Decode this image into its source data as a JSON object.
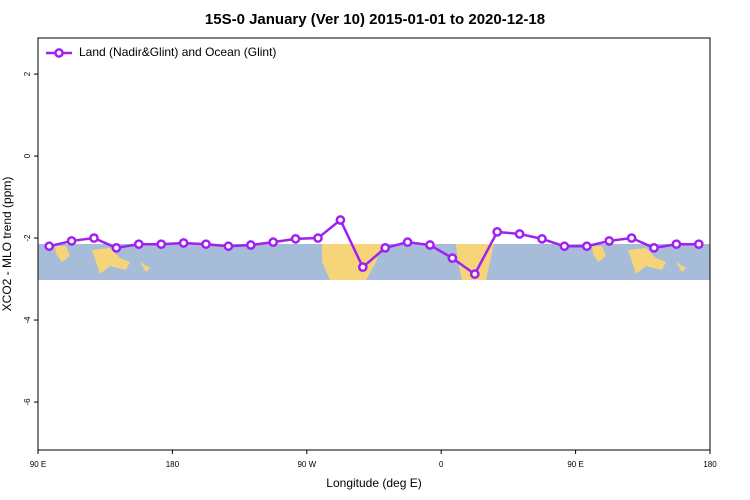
{
  "chart_data": {
    "type": "line",
    "title": "15S-0 January (Ver 10)   2015-01-01 to 2020-12-18",
    "x_label": "Longitude (deg E)",
    "y_label": "XCO2 - MLO trend (ppm)",
    "x": [
      97.5,
      112.5,
      127.5,
      142.5,
      157.5,
      172.5,
      187.5,
      202.5,
      217.5,
      232.5,
      247.5,
      262.5,
      277.5,
      292.5,
      307.5,
      322.5,
      337.5,
      352.5,
      367.5,
      382.5,
      397.5,
      412.5,
      427.5,
      442.5,
      457.5,
      472.5,
      487.5,
      502.5,
      517.5,
      532.5
    ],
    "series": [
      {
        "name": "Land (Nadir&Glint) and Ocean (Glint)",
        "color": "#a020f0",
        "values": [
          -2.2,
          -2.07,
          -2.0,
          -2.24,
          -2.15,
          -2.15,
          -2.12,
          -2.15,
          -2.2,
          -2.17,
          -2.1,
          -2.02,
          -2.0,
          -1.56,
          -2.71,
          -2.24,
          -2.1,
          -2.17,
          -2.49,
          -2.88,
          -1.85,
          -1.9,
          -2.02,
          -2.2,
          -2.2,
          -2.07,
          -2.0,
          -2.24,
          -2.15,
          -2.15
        ]
      }
    ],
    "xlim": [
      90,
      540
    ],
    "xticks": [
      {
        "value": 90,
        "label": "90 E"
      },
      {
        "value": 180,
        "label": "180"
      },
      {
        "value": 270,
        "label": "90 W"
      },
      {
        "value": 360,
        "label": "0"
      },
      {
        "value": 450,
        "label": "90 E"
      },
      {
        "value": 540,
        "label": "180"
      }
    ],
    "ylim": [
      -7.17,
      2.88
    ],
    "yticks": [
      2,
      0,
      -2,
      -4,
      -6
    ],
    "legend": "top-left"
  }
}
